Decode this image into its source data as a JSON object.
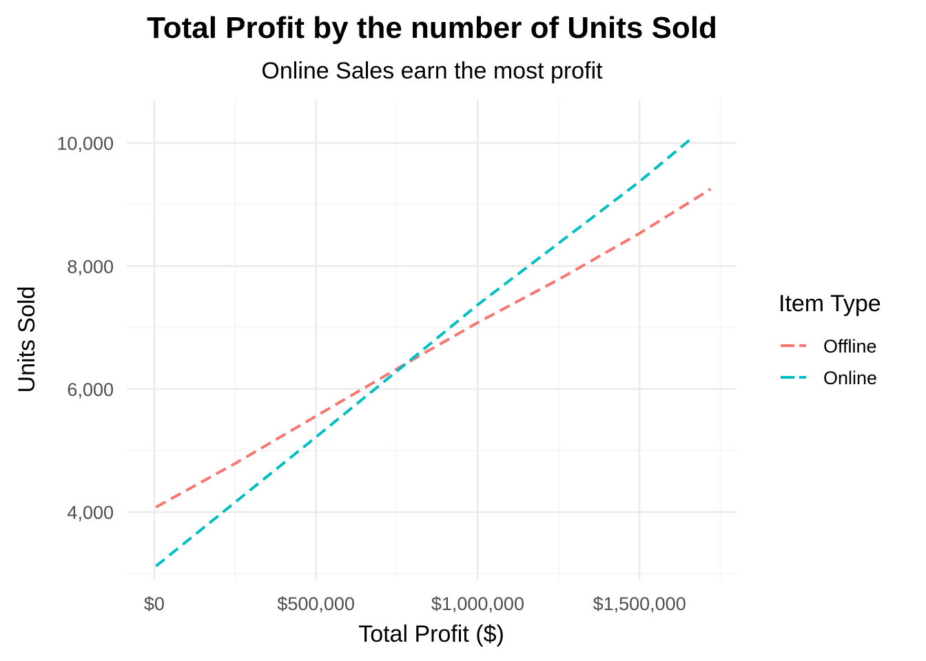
{
  "chart_data": {
    "type": "line",
    "title": "Total Profit by the number of Units Sold",
    "subtitle": "Online Sales earn the most profit",
    "xlabel": "Total Profit ($)",
    "ylabel": "Units Sold",
    "xlim": [
      -85000,
      1800000
    ],
    "ylim": [
      2900,
      10700
    ],
    "x_ticks": [
      {
        "value": 0,
        "label": "$0"
      },
      {
        "value": 500000,
        "label": "$500,000"
      },
      {
        "value": 1000000,
        "label": "$1,000,000"
      },
      {
        "value": 1500000,
        "label": "$1,500,000"
      }
    ],
    "y_ticks": [
      {
        "value": 4000,
        "label": "4,000"
      },
      {
        "value": 6000,
        "label": "6,000"
      },
      {
        "value": 8000,
        "label": "8,000"
      },
      {
        "value": 10000,
        "label": "10,000"
      }
    ],
    "grid": true,
    "legend": {
      "title": "Item Type",
      "position": "right"
    },
    "series": [
      {
        "name": "Offline",
        "color": "#F8766D",
        "dash": "dashed",
        "points": [
          [
            5000,
            4080
          ],
          [
            250000,
            4790
          ],
          [
            500000,
            5560
          ],
          [
            800000,
            6480
          ],
          [
            1000000,
            7080
          ],
          [
            1250000,
            7780
          ],
          [
            1500000,
            8530
          ],
          [
            1720000,
            9250
          ]
        ]
      },
      {
        "name": "Online",
        "color": "#00BFC4",
        "dash": "dashed",
        "points": [
          [
            5000,
            3120
          ],
          [
            250000,
            4160
          ],
          [
            500000,
            5220
          ],
          [
            750000,
            6290
          ],
          [
            1000000,
            7370
          ],
          [
            1250000,
            8370
          ],
          [
            1500000,
            9370
          ],
          [
            1660000,
            10070
          ]
        ]
      }
    ]
  }
}
